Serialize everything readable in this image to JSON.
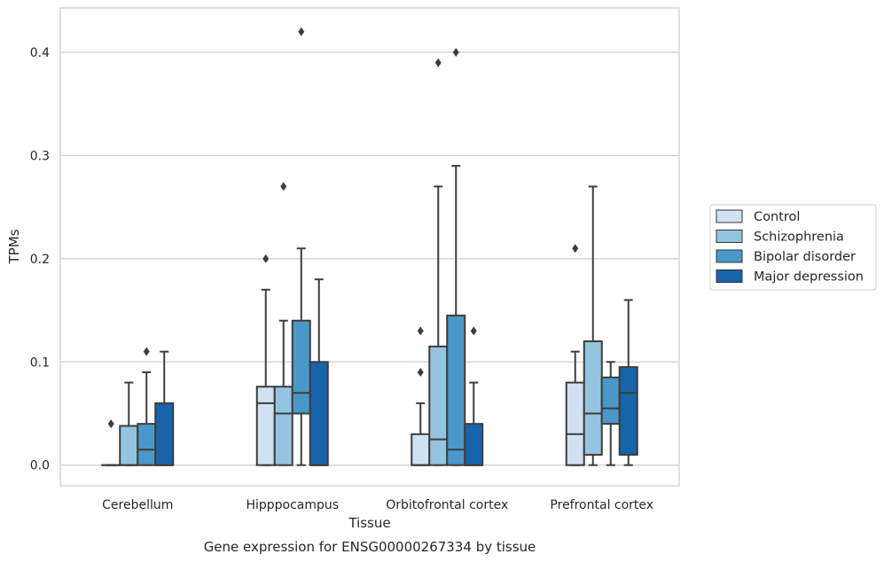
{
  "chart_data": {
    "type": "boxplot",
    "title": "",
    "caption": "Gene expression for ENSG00000267334 by tissue",
    "xlabel": "Tissue",
    "ylabel": "TPMs",
    "ylim": [
      -0.02,
      0.443
    ],
    "yticks": [
      0.0,
      0.1,
      0.2,
      0.3,
      0.4
    ],
    "ytick_labels": [
      "0.0",
      "0.1",
      "0.2",
      "0.3",
      "0.4"
    ],
    "grid": "horizontal",
    "legend_position": "right",
    "categories": [
      "Cerebellum",
      "Hipppocampus",
      "Orbitofrontal cortex",
      "Prefrontal cortex"
    ],
    "series": [
      {
        "name": "Control",
        "color": "#d0e1f2",
        "boxes": [
          {
            "whislo": 0.0,
            "q1": 0.0,
            "med": 0.0,
            "q3": 0.0,
            "whishi": 0.0,
            "fliers": [
              0.04
            ]
          },
          {
            "whislo": 0.0,
            "q1": 0.0,
            "med": 0.06,
            "q3": 0.076,
            "whishi": 0.17,
            "fliers": [
              0.2
            ]
          },
          {
            "whislo": 0.0,
            "q1": 0.0,
            "med": 0.0,
            "q3": 0.03,
            "whishi": 0.06,
            "fliers": [
              0.09,
              0.13
            ]
          },
          {
            "whislo": 0.0,
            "q1": 0.0,
            "med": 0.03,
            "q3": 0.08,
            "whishi": 0.11,
            "fliers": [
              0.21
            ]
          }
        ]
      },
      {
        "name": "Schizophrenia",
        "color": "#94c4df",
        "boxes": [
          {
            "whislo": 0.0,
            "q1": 0.0,
            "med": 0.0,
            "q3": 0.038,
            "whishi": 0.08,
            "fliers": []
          },
          {
            "whislo": 0.0,
            "q1": 0.0,
            "med": 0.05,
            "q3": 0.076,
            "whishi": 0.14,
            "fliers": [
              0.27
            ]
          },
          {
            "whislo": 0.0,
            "q1": 0.0,
            "med": 0.025,
            "q3": 0.115,
            "whishi": 0.27,
            "fliers": [
              0.39
            ]
          },
          {
            "whislo": 0.0,
            "q1": 0.01,
            "med": 0.05,
            "q3": 0.12,
            "whishi": 0.27,
            "fliers": []
          }
        ]
      },
      {
        "name": "Bipolar disorder",
        "color": "#4a98c9",
        "boxes": [
          {
            "whislo": 0.0,
            "q1": 0.0,
            "med": 0.015,
            "q3": 0.04,
            "whishi": 0.09,
            "fliers": [
              0.11
            ]
          },
          {
            "whislo": 0.0,
            "q1": 0.05,
            "med": 0.07,
            "q3": 0.14,
            "whishi": 0.21,
            "fliers": [
              0.42
            ]
          },
          {
            "whislo": 0.0,
            "q1": 0.0,
            "med": 0.015,
            "q3": 0.145,
            "whishi": 0.29,
            "fliers": [
              0.4
            ]
          },
          {
            "whislo": 0.0,
            "q1": 0.04,
            "med": 0.055,
            "q3": 0.085,
            "whishi": 0.1,
            "fliers": []
          }
        ]
      },
      {
        "name": "Major depression",
        "color": "#1764ab",
        "boxes": [
          {
            "whislo": 0.0,
            "q1": 0.0,
            "med": 0.0,
            "q3": 0.06,
            "whishi": 0.11,
            "fliers": []
          },
          {
            "whislo": 0.0,
            "q1": 0.0,
            "med": 0.0,
            "q3": 0.1,
            "whishi": 0.18,
            "fliers": []
          },
          {
            "whislo": 0.0,
            "q1": 0.0,
            "med": 0.0,
            "q3": 0.04,
            "whishi": 0.08,
            "fliers": [
              0.13
            ]
          },
          {
            "whislo": 0.0,
            "q1": 0.01,
            "med": 0.07,
            "q3": 0.095,
            "whishi": 0.16,
            "fliers": []
          }
        ]
      }
    ]
  }
}
